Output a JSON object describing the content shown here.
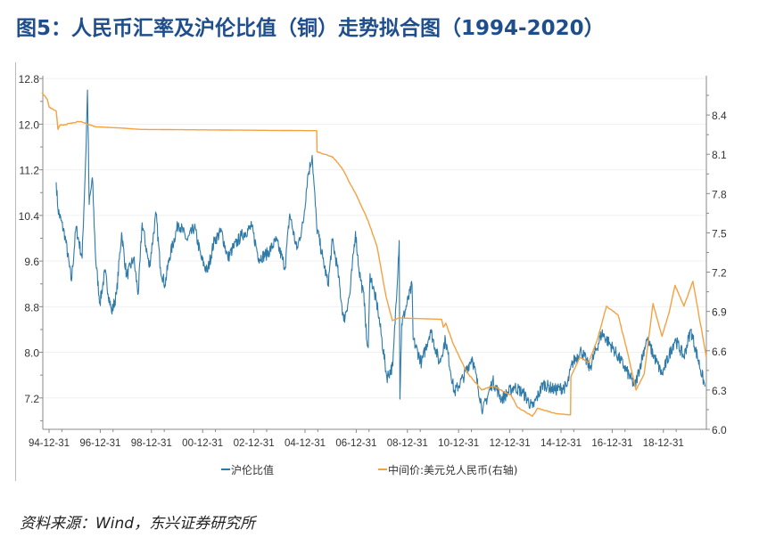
{
  "title": "图5：人民币汇率及沪伦比值（铜）走势拟合图（1994-2020）",
  "source": "资料来源：Wind，东兴证券研究所",
  "chart_data": {
    "type": "line",
    "title": "",
    "xlabel": "",
    "ylabel": "",
    "x_ticks": [
      "94-12-31",
      "96-12-31",
      "98-12-31",
      "00-12-31",
      "02-12-31",
      "04-12-31",
      "06-12-31",
      "08-12-31",
      "10-12-31",
      "12-12-31",
      "14-12-31",
      "16-12-31",
      "18-12-31"
    ],
    "y_left": {
      "lim": [
        6.65,
        12.85
      ],
      "ticks": [
        "12.8",
        "12.0",
        "11.2",
        "10.4",
        "9.6",
        "8.8",
        "8.0",
        "7.2"
      ]
    },
    "y_right": {
      "lim": [
        6.0,
        8.7
      ],
      "ticks": [
        "8.4",
        "8.1",
        "7.8",
        "7.5",
        "7.2",
        "6.9",
        "6.6",
        "6.3",
        "6.0"
      ]
    },
    "grid": true,
    "legend_position": "bottom",
    "series": [
      {
        "name": "沪伦比值",
        "axis": "left",
        "color": "#2e7aa8",
        "points": [
          [
            "1995-04-10",
            10.98
          ],
          [
            "1995-05-05",
            10.51
          ],
          [
            "1995-08-15",
            10.04
          ],
          [
            "1995-11-15",
            9.25
          ],
          [
            "1996-01-20",
            10.2
          ],
          [
            "1996-04-15",
            9.65
          ],
          [
            "1996-06-05",
            11.37
          ],
          [
            "1996-07-01",
            12.6
          ],
          [
            "1996-07-25",
            10.59
          ],
          [
            "1996-09-10",
            11.06
          ],
          [
            "1996-10-25",
            9.65
          ],
          [
            "1996-12-25",
            8.86
          ],
          [
            "1997-03-05",
            9.41
          ],
          [
            "1997-06-10",
            8.7
          ],
          [
            "1997-08-20",
            9.02
          ],
          [
            "1997-10-30",
            10.1
          ],
          [
            "1998-01-10",
            9.33
          ],
          [
            "1998-04-20",
            9.65
          ],
          [
            "1998-06-25",
            9.02
          ],
          [
            "1998-08-20",
            10.27
          ],
          [
            "1998-11-30",
            9.49
          ],
          [
            "1999-03-05",
            10.43
          ],
          [
            "1999-05-05",
            9.49
          ],
          [
            "1999-07-10",
            9.18
          ],
          [
            "1999-09-10",
            9.65
          ],
          [
            "2000-01-20",
            10.27
          ],
          [
            "2000-05-25",
            9.96
          ],
          [
            "2000-09-05",
            10.2
          ],
          [
            "2000-12-10",
            9.65
          ],
          [
            "2001-03-05",
            9.41
          ],
          [
            "2001-06-15",
            9.96
          ],
          [
            "2001-09-25",
            10.12
          ],
          [
            "2001-12-25",
            9.65
          ],
          [
            "2002-02-25",
            9.8
          ],
          [
            "2002-07-01",
            10.04
          ],
          [
            "2002-11-30",
            10.2
          ],
          [
            "2003-03-10",
            9.65
          ],
          [
            "2003-07-10",
            9.73
          ],
          [
            "2003-11-15",
            9.96
          ],
          [
            "2004-03-20",
            9.49
          ],
          [
            "2004-05-25",
            10.43
          ],
          [
            "2004-09-05",
            9.8
          ],
          [
            "2004-12-05",
            10.27
          ],
          [
            "2005-02-05",
            11.06
          ],
          [
            "2005-04-10",
            11.45
          ],
          [
            "2005-06-15",
            10.2
          ],
          [
            "2005-09-10",
            9.65
          ],
          [
            "2005-11-25",
            9.18
          ],
          [
            "2006-01-25",
            9.96
          ],
          [
            "2006-04-05",
            9.49
          ],
          [
            "2006-07-05",
            8.55
          ],
          [
            "2006-10-01",
            9.02
          ],
          [
            "2006-12-20",
            10.12
          ],
          [
            "2007-02-05",
            9.49
          ],
          [
            "2007-04-30",
            8.86
          ],
          [
            "2007-05-25",
            8.23
          ],
          [
            "2007-06-20",
            8.08
          ],
          [
            "2007-07-15",
            9.38
          ],
          [
            "2007-11-05",
            8.75
          ],
          [
            "2008-03-10",
            7.56
          ],
          [
            "2008-06-05",
            7.76
          ],
          [
            "2008-09-05",
            9.96
          ],
          [
            "2008-09-15",
            7.18
          ],
          [
            "2008-10-10",
            8.5
          ],
          [
            "2009-03-05",
            9.18
          ],
          [
            "2009-03-20",
            8.23
          ],
          [
            "2009-07-20",
            7.81
          ],
          [
            "2009-11-25",
            8.39
          ],
          [
            "2010-04-01",
            7.81
          ],
          [
            "2010-06-25",
            8.23
          ],
          [
            "2010-10-30",
            7.29
          ],
          [
            "2011-03-05",
            7.56
          ],
          [
            "2011-07-10",
            7.92
          ],
          [
            "2011-12-10",
            6.98
          ],
          [
            "2012-05-01",
            7.5
          ],
          [
            "2012-09-05",
            7.18
          ],
          [
            "2013-03-01",
            7.4
          ],
          [
            "2013-07-05",
            7.29
          ],
          [
            "2013-11-20",
            7.03
          ],
          [
            "2014-04-20",
            7.45
          ],
          [
            "2014-09-30",
            7.34
          ],
          [
            "2015-03-25",
            7.4
          ],
          [
            "2015-06-10",
            7.81
          ],
          [
            "2015-10-15",
            8.03
          ],
          [
            "2016-02-15",
            7.72
          ],
          [
            "2016-08-05",
            8.34
          ],
          [
            "2017-01-05",
            8.08
          ],
          [
            "2017-06-15",
            7.76
          ],
          [
            "2017-11-20",
            7.4
          ],
          [
            "2018-05-05",
            8.23
          ],
          [
            "2018-12-10",
            7.61
          ],
          [
            "2019-06-15",
            8.23
          ],
          [
            "2019-10-20",
            7.92
          ],
          [
            "2020-01-25",
            8.39
          ],
          [
            "2020-08-15",
            7.4
          ]
        ]
      },
      {
        "name": "中间价:美元兑人民币(右轴)",
        "axis": "right",
        "color": "#f5a142",
        "points": [
          [
            "1994-09-20",
            8.57
          ],
          [
            "1994-12-05",
            8.52
          ],
          [
            "1995-01-01",
            8.46
          ],
          [
            "1995-04-10",
            8.43
          ],
          [
            "1995-05-05",
            8.29
          ],
          [
            "1995-06-01",
            8.32
          ],
          [
            "1996-03-20",
            8.35
          ],
          [
            "1996-10-25",
            8.31
          ],
          [
            "1997-11-10",
            8.3
          ],
          [
            "1998-07-20",
            8.29
          ],
          [
            "2005-06-15",
            8.28
          ],
          [
            "2005-06-20",
            8.12
          ],
          [
            "2006-01-30",
            8.08
          ],
          [
            "2006-06-05",
            8.0
          ],
          [
            "2007-01-10",
            7.78
          ],
          [
            "2007-06-20",
            7.59
          ],
          [
            "2007-10-25",
            7.39
          ],
          [
            "2008-03-01",
            7.01
          ],
          [
            "2008-05-30",
            6.83
          ],
          [
            "2008-08-30",
            6.85
          ],
          [
            "2010-05-01",
            6.84
          ],
          [
            "2010-05-25",
            6.78
          ],
          [
            "2010-07-01",
            6.81
          ],
          [
            "2010-10-01",
            6.67
          ],
          [
            "2011-04-20",
            6.44
          ],
          [
            "2011-11-25",
            6.3
          ],
          [
            "2012-05-05",
            6.33
          ],
          [
            "2013-01-20",
            6.26
          ],
          [
            "2013-04-15",
            6.17
          ],
          [
            "2013-11-20",
            6.1
          ],
          [
            "2014-02-01",
            6.16
          ],
          [
            "2014-10-15",
            6.12
          ],
          [
            "2015-05-15",
            6.11
          ],
          [
            "2015-05-20",
            6.4
          ],
          [
            "2015-09-25",
            6.55
          ],
          [
            "2016-01-30",
            6.51
          ],
          [
            "2016-06-05",
            6.69
          ],
          [
            "2016-10-10",
            6.94
          ],
          [
            "2017-03-25",
            6.87
          ],
          [
            "2017-07-30",
            6.6
          ],
          [
            "2017-12-05",
            6.3
          ],
          [
            "2018-03-30",
            6.42
          ],
          [
            "2018-08-05",
            6.96
          ],
          [
            "2018-12-10",
            6.71
          ],
          [
            "2019-03-20",
            6.89
          ],
          [
            "2019-06-15",
            7.1
          ],
          [
            "2019-10-20",
            6.94
          ],
          [
            "2020-02-25",
            7.13
          ],
          [
            "2020-09-05",
            6.55
          ]
        ]
      }
    ]
  }
}
